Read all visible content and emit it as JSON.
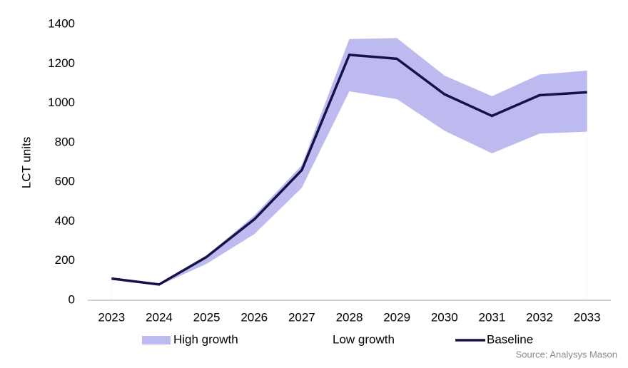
{
  "chart_data": {
    "type": "band-line",
    "y_label": "LCT units",
    "x": [
      "2023",
      "2024",
      "2025",
      "2026",
      "2027",
      "2028",
      "2029",
      "2030",
      "2031",
      "2032",
      "2033"
    ],
    "series": [
      {
        "name": "High growth",
        "color": "#bcbaee",
        "values": [
          110,
          80,
          225,
          430,
          685,
          1325,
          1330,
          1140,
          1035,
          1145,
          1165
        ]
      },
      {
        "name": "Low growth",
        "color": "#ffffff",
        "values": [
          110,
          75,
          185,
          335,
          570,
          1060,
          1020,
          860,
          745,
          845,
          855
        ]
      },
      {
        "name": "Baseline",
        "color": "#14124a",
        "values": [
          110,
          80,
          220,
          410,
          660,
          1245,
          1225,
          1045,
          935,
          1040,
          1055
        ]
      }
    ],
    "ylim": [
      0,
      1400
    ],
    "yticks": [
      0,
      200,
      400,
      600,
      800,
      1000,
      1200,
      1400
    ],
    "source": "Source: Analysys Mason"
  }
}
